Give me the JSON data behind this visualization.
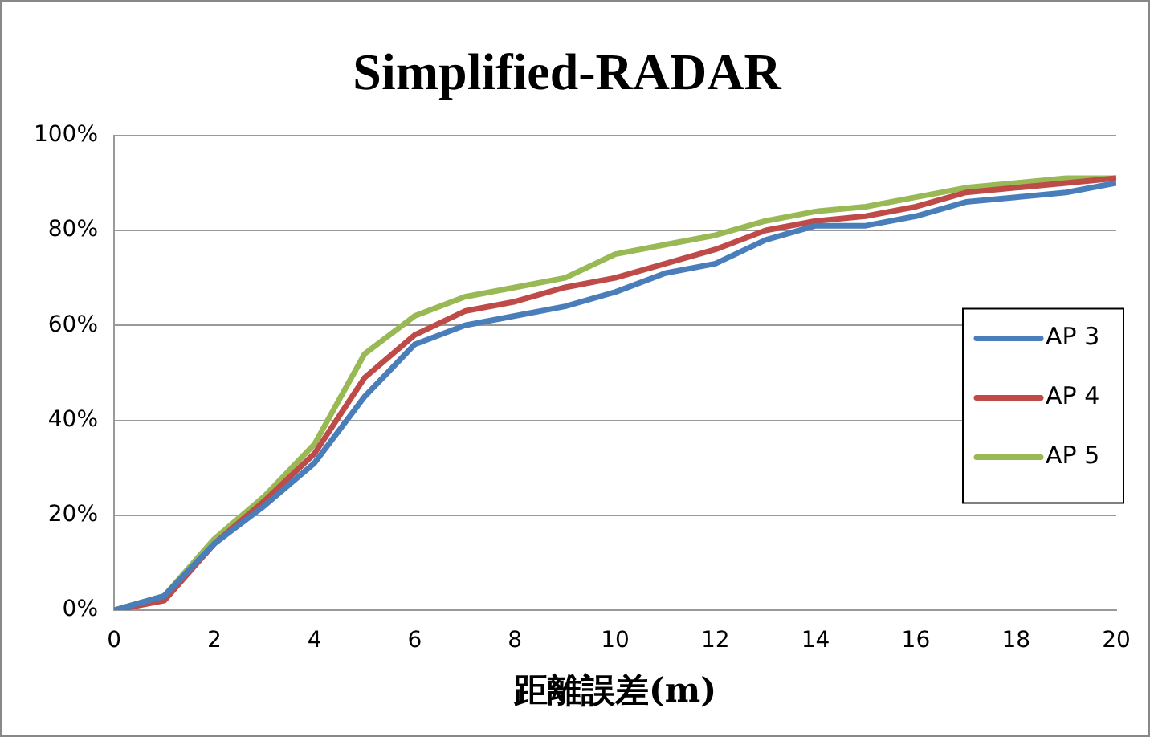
{
  "chart_data": {
    "type": "line",
    "title": "Simplified-RADAR",
    "xlabel": "距離誤差(m)",
    "x": [
      0,
      1,
      2,
      3,
      4,
      5,
      6,
      7,
      8,
      9,
      10,
      11,
      12,
      13,
      14,
      15,
      16,
      17,
      18,
      19,
      20
    ],
    "series": [
      {
        "name": "AP 3",
        "color": "#4a7ebb",
        "values": [
          0,
          3,
          14,
          22,
          31,
          45,
          56,
          60,
          62,
          64,
          67,
          71,
          73,
          78,
          81,
          81,
          83,
          86,
          87,
          88,
          90
        ]
      },
      {
        "name": "AP 4",
        "color": "#be4b48",
        "values": [
          0,
          2,
          14,
          23,
          33,
          49,
          58,
          63,
          65,
          68,
          70,
          73,
          76,
          80,
          82,
          83,
          85,
          88,
          89,
          90,
          91
        ]
      },
      {
        "name": "AP 5",
        "color": "#98b954",
        "values": [
          0,
          3,
          15,
          24,
          35,
          54,
          62,
          66,
          68,
          70,
          75,
          77,
          79,
          82,
          84,
          85,
          87,
          89,
          90,
          91,
          91
        ]
      }
    ],
    "xlim": [
      0,
      20
    ],
    "xticks": [
      0,
      2,
      4,
      6,
      8,
      10,
      12,
      14,
      16,
      18,
      20
    ],
    "ylim": [
      0,
      100
    ],
    "yticks": [
      {
        "value": 0,
        "label": "0%"
      },
      {
        "value": 20,
        "label": "20%"
      },
      {
        "value": 40,
        "label": "40%"
      },
      {
        "value": 60,
        "label": "60%"
      },
      {
        "value": 80,
        "label": "80%"
      },
      {
        "value": 100,
        "label": "100%"
      }
    ],
    "grid": "y",
    "legend": "right",
    "marker": "none",
    "line_style": "solid"
  }
}
